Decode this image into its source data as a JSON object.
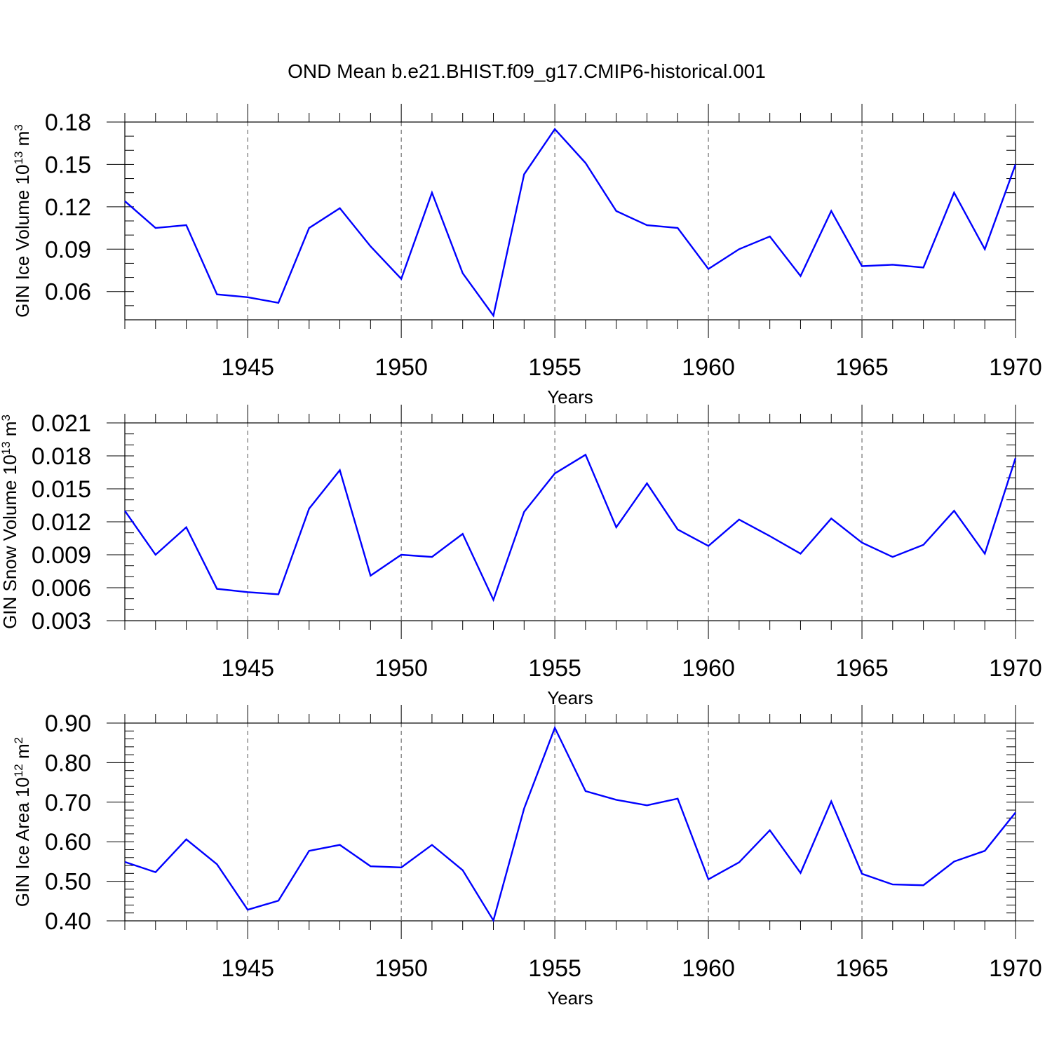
{
  "title": "OND Mean b.e21.BHIST.f09_g17.CMIP6-historical.001",
  "chart_data": [
    {
      "type": "line",
      "xlabel": "Years",
      "ylabel": {
        "text": "GIN Ice Volume 10",
        "exp": "13",
        "unit": " m",
        "unit_exp": "3"
      },
      "xlim": [
        1941,
        1970
      ],
      "ylim": [
        0.04,
        0.18
      ],
      "yticks": [
        0.06,
        0.09,
        0.12,
        0.15,
        0.18
      ],
      "ytick_labels": [
        "0.06",
        "0.09",
        "0.12",
        "0.15",
        "0.18"
      ],
      "yminor_step": 0.01,
      "xticks": [
        1945,
        1950,
        1955,
        1960,
        1965,
        1970
      ],
      "xtick_labels": [
        "1945",
        "1950",
        "1955",
        "1960",
        "1965",
        "1970"
      ],
      "xgrid": true,
      "line_color": "#0000ff",
      "series": [
        {
          "x": [
            1941,
            1942,
            1943,
            1944,
            1945,
            1946,
            1947,
            1948,
            1949,
            1950,
            1951,
            1952,
            1953,
            1954,
            1955,
            1956,
            1957,
            1958,
            1959,
            1960,
            1961,
            1962,
            1963,
            1964,
            1965,
            1966,
            1967,
            1968,
            1969,
            1970
          ],
          "values": [
            0.124,
            0.105,
            0.107,
            0.058,
            0.056,
            0.052,
            0.105,
            0.119,
            0.092,
            0.069,
            0.13,
            0.073,
            0.043,
            0.143,
            0.175,
            0.151,
            0.117,
            0.107,
            0.105,
            0.076,
            0.09,
            0.099,
            0.071,
            0.117,
            0.078,
            0.079,
            0.077,
            0.13,
            0.09,
            0.15
          ]
        }
      ]
    },
    {
      "type": "line",
      "xlabel": "Years",
      "ylabel": {
        "text": "GIN Snow Volume 10",
        "exp": "13",
        "unit": " m",
        "unit_exp": "3"
      },
      "xlim": [
        1941,
        1970
      ],
      "ylim": [
        0.003,
        0.021
      ],
      "yticks": [
        0.003,
        0.006,
        0.009,
        0.012,
        0.015,
        0.018,
        0.021
      ],
      "ytick_labels": [
        "0.003",
        "0.006",
        "0.009",
        "0.012",
        "0.015",
        "0.018",
        "0.021"
      ],
      "yminor_step": 0.001,
      "xticks": [
        1945,
        1950,
        1955,
        1960,
        1965,
        1970
      ],
      "xtick_labels": [
        "1945",
        "1950",
        "1955",
        "1960",
        "1965",
        "1970"
      ],
      "xgrid": true,
      "line_color": "#0000ff",
      "series": [
        {
          "x": [
            1941,
            1942,
            1943,
            1944,
            1945,
            1946,
            1947,
            1948,
            1949,
            1950,
            1951,
            1952,
            1953,
            1954,
            1955,
            1956,
            1957,
            1958,
            1959,
            1960,
            1961,
            1962,
            1963,
            1964,
            1965,
            1966,
            1967,
            1968,
            1969,
            1970
          ],
          "values": [
            0.013,
            0.009,
            0.0115,
            0.0059,
            0.0056,
            0.0054,
            0.0132,
            0.0167,
            0.0071,
            0.009,
            0.0088,
            0.0109,
            0.0049,
            0.0129,
            0.0164,
            0.0181,
            0.0115,
            0.0155,
            0.0113,
            0.0098,
            0.0122,
            0.0107,
            0.0091,
            0.0123,
            0.0101,
            0.0088,
            0.0099,
            0.013,
            0.0091,
            0.0178
          ]
        }
      ]
    },
    {
      "type": "line",
      "xlabel": "Years",
      "ylabel": {
        "text": "GIN Ice Area 10",
        "exp": "12",
        "unit": " m",
        "unit_exp": "2"
      },
      "xlim": [
        1941,
        1970
      ],
      "ylim": [
        0.4,
        0.9
      ],
      "yticks": [
        0.4,
        0.5,
        0.6,
        0.7,
        0.8,
        0.9
      ],
      "ytick_labels": [
        "0.40",
        "0.50",
        "0.60",
        "0.70",
        "0.80",
        "0.90"
      ],
      "yminor_step": 0.02,
      "xticks": [
        1945,
        1950,
        1955,
        1960,
        1965,
        1970
      ],
      "xtick_labels": [
        "1945",
        "1950",
        "1955",
        "1960",
        "1965",
        "1970"
      ],
      "xgrid": true,
      "line_color": "#0000ff",
      "series": [
        {
          "x": [
            1941,
            1942,
            1943,
            1944,
            1945,
            1946,
            1947,
            1948,
            1949,
            1950,
            1951,
            1952,
            1953,
            1954,
            1955,
            1956,
            1957,
            1958,
            1959,
            1960,
            1961,
            1962,
            1963,
            1964,
            1965,
            1966,
            1967,
            1968,
            1969,
            1970
          ],
          "values": [
            0.549,
            0.523,
            0.606,
            0.543,
            0.428,
            0.451,
            0.577,
            0.592,
            0.538,
            0.535,
            0.592,
            0.528,
            0.401,
            0.684,
            0.888,
            0.728,
            0.706,
            0.692,
            0.709,
            0.505,
            0.548,
            0.629,
            0.521,
            0.702,
            0.519,
            0.492,
            0.49,
            0.55,
            0.577,
            0.674
          ]
        }
      ]
    }
  ]
}
